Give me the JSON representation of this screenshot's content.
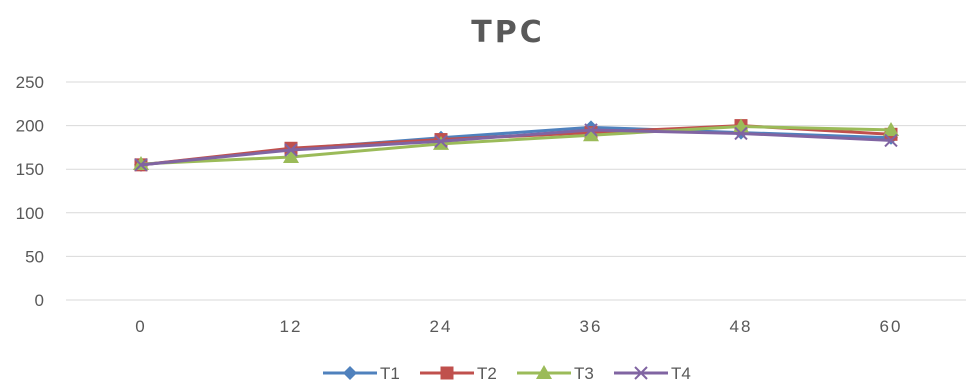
{
  "chart_data": {
    "type": "line",
    "title": "TPC",
    "x": [
      "0",
      "12",
      "24",
      "36",
      "48",
      "60"
    ],
    "ylim": [
      0,
      250
    ],
    "yticks": [
      "0",
      "50",
      "100",
      "150",
      "200",
      "250"
    ],
    "grid": true,
    "legend_position": "bottom",
    "series": [
      {
        "name": "T1",
        "color": "#4f81bd",
        "marker": "diamond",
        "values": [
          155,
          173,
          186,
          198,
          192,
          186
        ]
      },
      {
        "name": "T2",
        "color": "#c0504d",
        "marker": "square",
        "values": [
          155,
          174,
          184,
          192,
          200,
          190
        ]
      },
      {
        "name": "T3",
        "color": "#9bbb59",
        "marker": "triangle",
        "values": [
          156,
          164,
          179,
          189,
          199,
          195
        ]
      },
      {
        "name": "T4",
        "color": "#8064a2",
        "marker": "x",
        "values": [
          155,
          172,
          182,
          195,
          191,
          183
        ]
      }
    ]
  }
}
